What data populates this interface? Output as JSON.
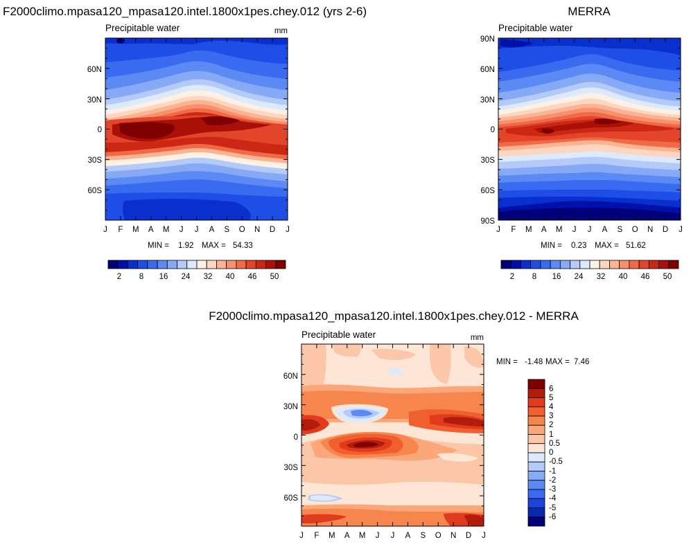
{
  "chart_data": [
    {
      "type": "heatmap",
      "title": "F2000climo.mpasa120_mpasa120.intel.1800x1pes.chey.012 (yrs 2-6)",
      "subtitle": "Precipitable water",
      "units": "mm",
      "x_labels": [
        "J",
        "F",
        "M",
        "A",
        "M",
        "J",
        "J",
        "A",
        "S",
        "O",
        "N",
        "D",
        "J"
      ],
      "y_labels": [
        "60N",
        "30N",
        "0",
        "30S",
        "60S"
      ],
      "ylim": [
        -90,
        90
      ],
      "min_label": "MIN =",
      "min": "1.92",
      "max_label": "MAX =",
      "max": "54.33",
      "colorbar_labels": [
        "2",
        "8",
        "16",
        "24",
        "32",
        "40",
        "46",
        "50"
      ]
    },
    {
      "type": "heatmap",
      "title": "MERRA",
      "subtitle": "Precipitable water",
      "x_labels": [
        "J",
        "F",
        "M",
        "A",
        "M",
        "J",
        "J",
        "A",
        "S",
        "O",
        "N",
        "D",
        "J"
      ],
      "y_labels": [
        "90N",
        "60N",
        "30N",
        "0",
        "30S",
        "60S",
        "90S"
      ],
      "ylim": [
        -90,
        90
      ],
      "min_label": "MIN =",
      "min": "0.23",
      "max_label": "MAX =",
      "max": "51.62",
      "colorbar_labels": [
        "2",
        "8",
        "16",
        "24",
        "32",
        "40",
        "46",
        "50"
      ]
    },
    {
      "type": "heatmap",
      "title": "F2000climo.mpasa120_mpasa120.intel.1800x1pes.chey.012 - MERRA",
      "subtitle": "Precipitable water",
      "units": "mm",
      "x_labels": [
        "J",
        "F",
        "M",
        "A",
        "M",
        "J",
        "J",
        "A",
        "S",
        "O",
        "N",
        "D",
        "J"
      ],
      "y_labels": [
        "60N",
        "30N",
        "0",
        "30S",
        "60S"
      ],
      "ylim": [
        -90,
        90
      ],
      "min_label": "MIN =",
      "min": "-1.48",
      "max_label": "MAX =",
      "max": "7.46",
      "colorbar_labels": [
        "6",
        "5",
        "4",
        "3",
        "2",
        "1",
        "0.5",
        "0",
        "-0.5",
        "-1",
        "-2",
        "-3",
        "-4",
        "-5",
        "-6"
      ]
    }
  ],
  "colors": {
    "abs_scale": [
      "#00007a",
      "#0010a8",
      "#0a2fcf",
      "#1e4ee6",
      "#3a6af0",
      "#5b8af5",
      "#87aaf7",
      "#b4cbfa",
      "#dde9fc",
      "#fdf1e6",
      "#fcd6bf",
      "#fbb493",
      "#f7916c",
      "#f06a47",
      "#e3452a",
      "#cc2614",
      "#a81008",
      "#7f0000"
    ],
    "diff_scale": [
      "#7f0000",
      "#b21c0c",
      "#e03b1c",
      "#f0602f",
      "#f7864e",
      "#fba77a",
      "#fcc7a8",
      "#fde6d5",
      "#dde9fc",
      "#b4cbfa",
      "#87aaf7",
      "#5b8af5",
      "#3a6af0",
      "#1a45dd",
      "#082aad",
      "#00007a"
    ]
  }
}
